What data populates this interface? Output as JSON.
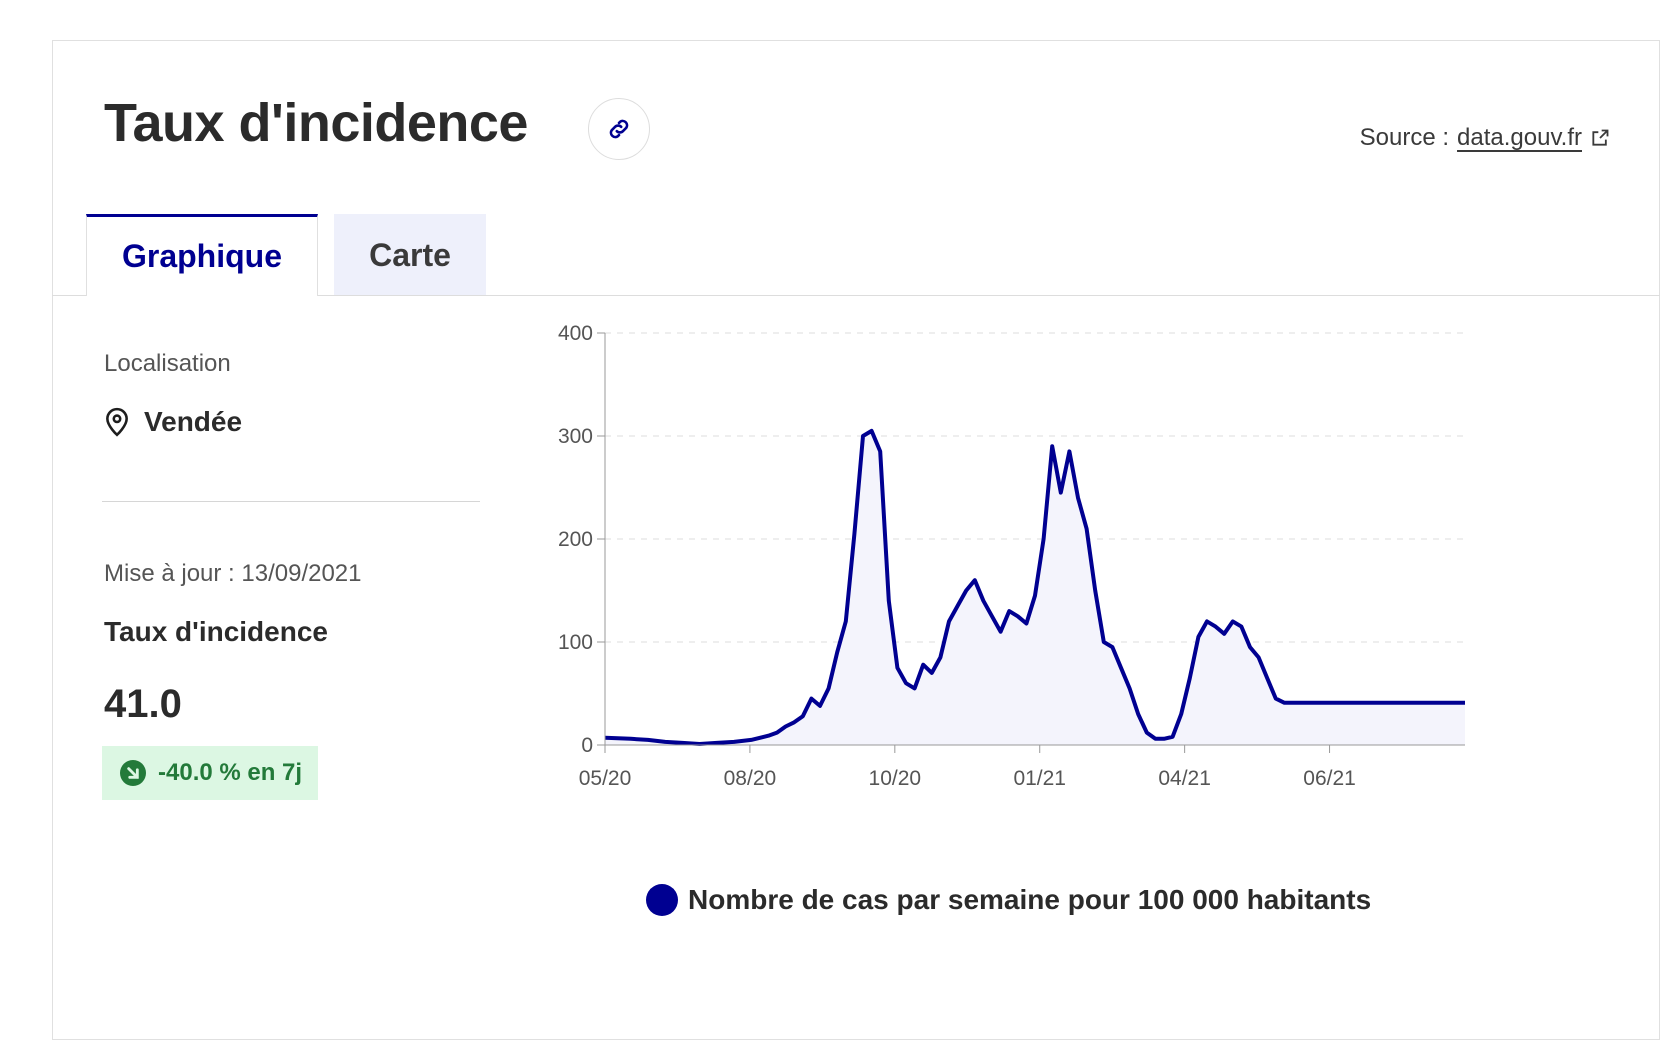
{
  "header": {
    "title": "Taux d'incidence",
    "source_prefix": "Source :",
    "source_link": "data.gouv.fr"
  },
  "tabs": [
    {
      "label": "Graphique",
      "active": true
    },
    {
      "label": "Carte",
      "active": false
    }
  ],
  "sidebar": {
    "location_label": "Localisation",
    "location_value": "Vendée",
    "updated": "Mise à jour : 13/09/2021",
    "metric_label": "Taux d'incidence",
    "metric_value": "41.0",
    "trend": "-40.0 % en 7j"
  },
  "colors": {
    "accent": "#000091",
    "area_fill": "#f4f4fc",
    "trend_bg": "#dcf7e3",
    "trend_text": "#237a3a"
  },
  "icons": {
    "link": "link-icon",
    "external": "external-link-icon",
    "location": "map-pin-icon",
    "trend": "arrow-down-right-icon"
  },
  "chart_data": {
    "type": "area",
    "title": "",
    "xlabel": "",
    "ylabel": "",
    "ylim": [
      0,
      400
    ],
    "yticks": [
      0,
      100,
      200,
      300,
      400
    ],
    "xticks": [
      "05/20",
      "08/20",
      "10/20",
      "01/21",
      "04/21",
      "06/21"
    ],
    "grid": true,
    "legend_position": "bottom",
    "series": [
      {
        "name": "Nombre de cas par semaine pour 100 000 habitants",
        "color": "#000091",
        "x": [
          0,
          3,
          5,
          7,
          9,
          11,
          13,
          15,
          17,
          19,
          20,
          21,
          22,
          23,
          24,
          25,
          26,
          27,
          28,
          29,
          30,
          31,
          32,
          33,
          34,
          35,
          36,
          37,
          38,
          39,
          40,
          41,
          42,
          43,
          44,
          45,
          46,
          47,
          48,
          49,
          50,
          51,
          52,
          53,
          54,
          55,
          56,
          57,
          58,
          59,
          60,
          61,
          62,
          63,
          64,
          65,
          66,
          67,
          68,
          69,
          70,
          71,
          72,
          73,
          74,
          75,
          76,
          77,
          78,
          79,
          80,
          81,
          82,
          83,
          84,
          85,
          86,
          87,
          88,
          89,
          90,
          91,
          92,
          93,
          94,
          95,
          96,
          97,
          98,
          99,
          100
        ],
        "y": [
          7,
          6,
          5,
          3,
          2,
          1,
          2,
          3,
          5,
          9,
          12,
          18,
          22,
          28,
          45,
          38,
          55,
          90,
          120,
          205,
          300,
          305,
          285,
          140,
          75,
          60,
          55,
          78,
          70,
          85,
          120,
          135,
          150,
          160,
          140,
          125,
          110,
          130,
          125,
          118,
          145,
          200,
          290,
          245,
          285,
          240,
          210,
          150,
          100,
          95,
          75,
          55,
          30,
          12,
          6,
          6,
          8,
          30,
          65,
          105,
          120,
          115,
          108,
          120,
          115,
          95,
          85,
          65,
          45,
          41,
          41,
          41,
          41,
          41,
          41,
          41,
          41,
          41,
          41,
          41,
          41,
          41,
          41,
          41,
          41,
          41,
          41,
          41,
          41,
          41,
          41
        ]
      }
    ]
  }
}
